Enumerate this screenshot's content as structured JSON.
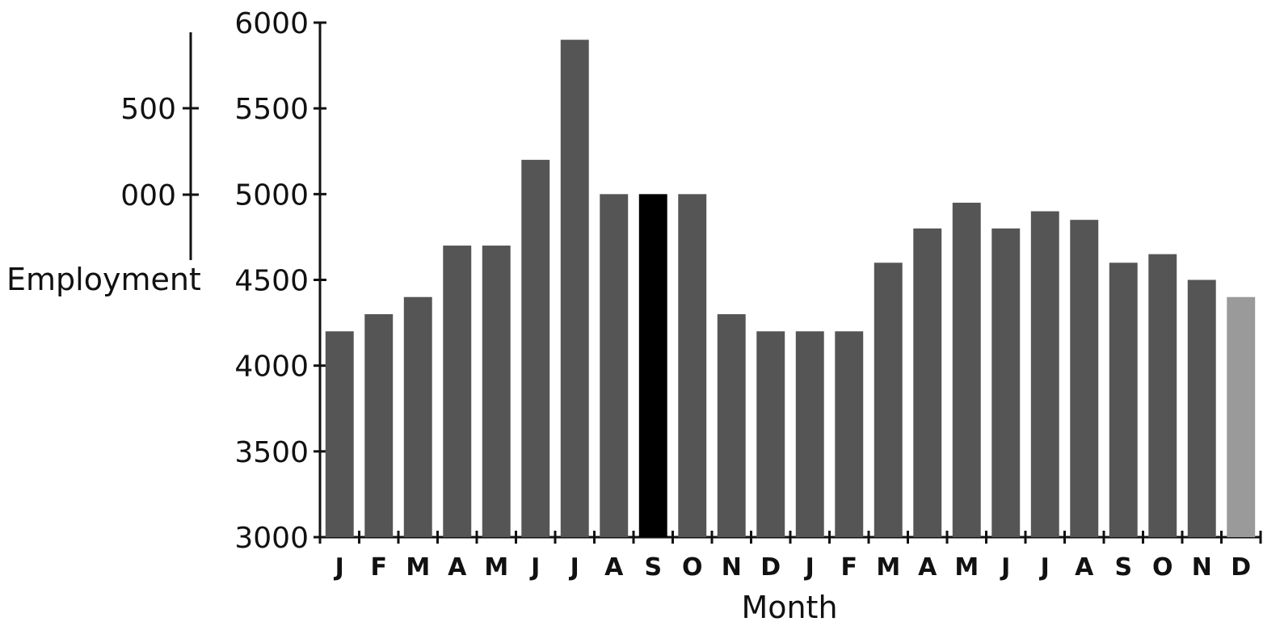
{
  "chart_data": {
    "type": "bar",
    "xlabel": "Month",
    "ylabel": "Employment",
    "ylim": [
      3000,
      6000
    ],
    "yticks": [
      "3000",
      "3500",
      "4000",
      "4500",
      "5000",
      "5500",
      "6000"
    ],
    "left_fragment_ticks": [
      "000",
      "500"
    ],
    "categories": [
      "J",
      "F",
      "M",
      "A",
      "M",
      "J",
      "J",
      "A",
      "S",
      "O",
      "N",
      "D",
      "J",
      "F",
      "M",
      "A",
      "M",
      "J",
      "J",
      "A",
      "S",
      "O",
      "N",
      "D"
    ],
    "values": [
      4200,
      4300,
      4400,
      4700,
      4700,
      5200,
      5900,
      5000,
      5000,
      5000,
      4300,
      4200,
      4200,
      4200,
      4600,
      4800,
      4950,
      4800,
      4900,
      4850,
      4600,
      4650,
      4500,
      4400
    ],
    "bar_color": "#555555",
    "highlight_color": "#000000",
    "highlight_index": 8,
    "faded_color": "#9a9a9a",
    "faded_index": 23,
    "grid": false
  }
}
